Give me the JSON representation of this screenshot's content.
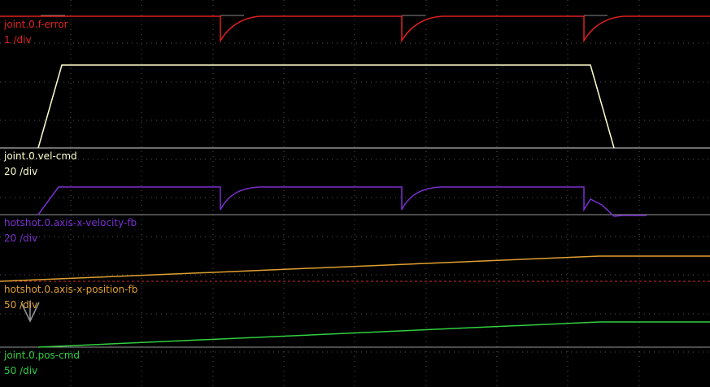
{
  "channels": [
    {
      "name": "joint.0.f-error",
      "scale": "1 /div"
    },
    {
      "name": "joint.0.vel-cmd",
      "scale": "20 /div"
    },
    {
      "name": "hotshot.0.axis-x-velocity-fb",
      "scale": "20 /div"
    },
    {
      "name": "hotshot.0.axis-x-position-fb",
      "scale": "50 /div"
    },
    {
      "name": "joint.0.pos-cmd",
      "scale": "50 /div"
    }
  ]
}
